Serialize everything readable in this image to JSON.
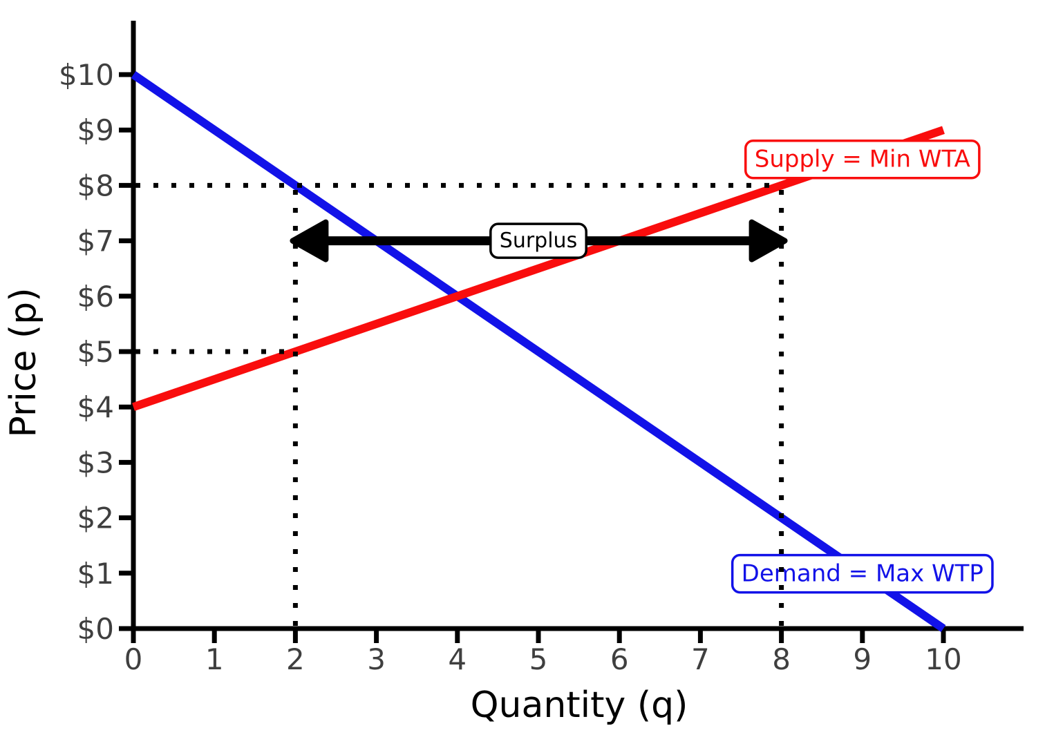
{
  "chart_data": {
    "type": "line",
    "title": "",
    "xlabel": "Quantity (q)",
    "ylabel": "Price (p)",
    "xlim": [
      0,
      11
    ],
    "ylim": [
      0,
      11
    ],
    "grid": false,
    "x_ticks": [
      0,
      1,
      2,
      3,
      4,
      5,
      6,
      7,
      8,
      9,
      10
    ],
    "y_ticks": [
      0,
      1,
      2,
      3,
      4,
      5,
      6,
      7,
      8,
      9,
      10
    ],
    "y_tick_labels": [
      "$0",
      "$1",
      "$2",
      "$3",
      "$4",
      "$5",
      "$6",
      "$7",
      "$8",
      "$9",
      "$10"
    ],
    "series": [
      {
        "name": "demand",
        "label": "Demand = Max WTP",
        "color": "#1212E8",
        "x": [
          0,
          10
        ],
        "y": [
          10,
          0
        ],
        "label_box_center": {
          "q": 9.0,
          "p": 0.99
        }
      },
      {
        "name": "supply",
        "label": "Supply = Min WTA",
        "color": "#F90D0D",
        "x": [
          0,
          10
        ],
        "y": [
          4,
          9
        ],
        "label_box_center": {
          "q": 9.0,
          "p": 8.47
        }
      }
    ],
    "dotted_guides": [
      {
        "orientation": "horizontal",
        "p": 8,
        "q_from": 0,
        "q_to": 8
      },
      {
        "orientation": "horizontal",
        "p": 5,
        "q_from": 0,
        "q_to": 2
      },
      {
        "orientation": "vertical",
        "q": 2,
        "p_from": 0,
        "p_to": 8
      },
      {
        "orientation": "vertical",
        "q": 8,
        "p_from": 0,
        "p_to": 8
      }
    ],
    "surplus_arrow": {
      "label": "Surplus",
      "p": 7,
      "q_from": 2,
      "q_to": 8
    },
    "colors": {
      "axis": "#000000",
      "tick_label": "#3F3F3F",
      "axis_label": "#000000",
      "arrow": "#000000",
      "guide": "#000000",
      "label_box_fill": "#FFFFFF",
      "surplus_text": "#000000"
    }
  }
}
